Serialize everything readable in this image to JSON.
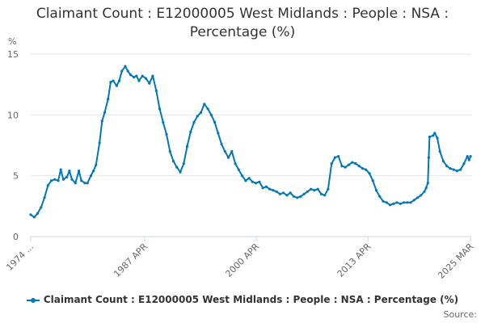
{
  "chart_data": {
    "type": "line",
    "title": "Claimant Count : E12000005 West Midlands : People : NSA : Percentage (%)",
    "title_lines": [
      "Claimant Count : E12000005 West Midlands : People : NSA :",
      "Percentage (%)"
    ],
    "ylabel": "%",
    "xlabel": "",
    "ylim": [
      0,
      15
    ],
    "yticks": [
      0,
      5,
      10,
      15
    ],
    "x_range": [
      1974.0,
      2025.25
    ],
    "x_tick_labels": [
      {
        "value": 1974.0,
        "label": "1974 ..."
      },
      {
        "value": 1987.25,
        "label": "1987 APR"
      },
      {
        "value": 2000.25,
        "label": "2000 APR"
      },
      {
        "value": 2013.25,
        "label": "2013 APR"
      },
      {
        "value": 2025.17,
        "label": "2025 MAR"
      }
    ],
    "grid": "horizontal",
    "legend_position": "bottom",
    "series": [
      {
        "name": "Claimant Count : E12000005 West Midlands : People : NSA : Percentage (%)",
        "color": "#0077b6",
        "points": [
          [
            1974.0,
            1.8
          ],
          [
            1974.4,
            1.6
          ],
          [
            1974.8,
            1.9
          ],
          [
            1975.2,
            2.4
          ],
          [
            1975.6,
            3.2
          ],
          [
            1976.0,
            4.2
          ],
          [
            1976.4,
            4.6
          ],
          [
            1976.8,
            4.7
          ],
          [
            1977.2,
            4.6
          ],
          [
            1977.5,
            5.5
          ],
          [
            1977.8,
            4.7
          ],
          [
            1978.2,
            4.9
          ],
          [
            1978.5,
            5.4
          ],
          [
            1978.8,
            4.7
          ],
          [
            1979.2,
            4.4
          ],
          [
            1979.6,
            5.4
          ],
          [
            1979.9,
            4.6
          ],
          [
            1980.3,
            4.4
          ],
          [
            1980.6,
            4.4
          ],
          [
            1981.0,
            5.0
          ],
          [
            1981.3,
            5.4
          ],
          [
            1981.6,
            5.9
          ],
          [
            1982.0,
            7.7
          ],
          [
            1982.3,
            9.5
          ],
          [
            1982.6,
            10.2
          ],
          [
            1983.0,
            11.3
          ],
          [
            1983.3,
            12.7
          ],
          [
            1983.6,
            12.8
          ],
          [
            1984.0,
            12.4
          ],
          [
            1984.3,
            12.8
          ],
          [
            1984.6,
            13.6
          ],
          [
            1985.0,
            14.0
          ],
          [
            1985.3,
            13.6
          ],
          [
            1985.6,
            13.3
          ],
          [
            1986.0,
            13.1
          ],
          [
            1986.3,
            13.2
          ],
          [
            1986.6,
            12.8
          ],
          [
            1987.0,
            13.2
          ],
          [
            1987.4,
            13.0
          ],
          [
            1987.8,
            12.6
          ],
          [
            1988.2,
            13.2
          ],
          [
            1988.6,
            12.0
          ],
          [
            1989.0,
            10.5
          ],
          [
            1989.4,
            9.4
          ],
          [
            1989.8,
            8.4
          ],
          [
            1990.2,
            7.0
          ],
          [
            1990.6,
            6.2
          ],
          [
            1991.0,
            5.7
          ],
          [
            1991.4,
            5.3
          ],
          [
            1991.8,
            6.0
          ],
          [
            1992.2,
            7.4
          ],
          [
            1992.6,
            8.6
          ],
          [
            1993.0,
            9.4
          ],
          [
            1993.4,
            9.9
          ],
          [
            1993.8,
            10.2
          ],
          [
            1994.2,
            10.9
          ],
          [
            1994.6,
            10.5
          ],
          [
            1995.0,
            10.0
          ],
          [
            1995.4,
            9.4
          ],
          [
            1995.8,
            8.5
          ],
          [
            1996.2,
            7.6
          ],
          [
            1996.6,
            7.0
          ],
          [
            1997.0,
            6.5
          ],
          [
            1997.4,
            7.0
          ],
          [
            1997.8,
            6.0
          ],
          [
            1998.2,
            5.5
          ],
          [
            1998.6,
            5.0
          ],
          [
            1999.0,
            4.6
          ],
          [
            1999.4,
            4.8
          ],
          [
            1999.8,
            4.5
          ],
          [
            2000.2,
            4.4
          ],
          [
            2000.6,
            4.5
          ],
          [
            2001.0,
            4.0
          ],
          [
            2001.4,
            4.1
          ],
          [
            2001.8,
            3.9
          ],
          [
            2002.2,
            3.8
          ],
          [
            2002.6,
            3.7
          ],
          [
            2003.0,
            3.5
          ],
          [
            2003.4,
            3.6
          ],
          [
            2003.8,
            3.4
          ],
          [
            2004.2,
            3.6
          ],
          [
            2004.6,
            3.3
          ],
          [
            2005.0,
            3.2
          ],
          [
            2005.4,
            3.3
          ],
          [
            2005.8,
            3.5
          ],
          [
            2006.2,
            3.7
          ],
          [
            2006.6,
            3.9
          ],
          [
            2007.0,
            3.8
          ],
          [
            2007.4,
            3.9
          ],
          [
            2007.8,
            3.5
          ],
          [
            2008.2,
            3.4
          ],
          [
            2008.6,
            3.9
          ],
          [
            2009.0,
            6.0
          ],
          [
            2009.4,
            6.5
          ],
          [
            2009.8,
            6.6
          ],
          [
            2010.2,
            5.8
          ],
          [
            2010.6,
            5.7
          ],
          [
            2011.0,
            5.9
          ],
          [
            2011.4,
            6.1
          ],
          [
            2011.8,
            6.0
          ],
          [
            2012.2,
            5.8
          ],
          [
            2012.6,
            5.6
          ],
          [
            2013.0,
            5.5
          ],
          [
            2013.4,
            5.2
          ],
          [
            2013.8,
            4.6
          ],
          [
            2014.2,
            3.8
          ],
          [
            2014.6,
            3.3
          ],
          [
            2015.0,
            2.9
          ],
          [
            2015.4,
            2.8
          ],
          [
            2015.8,
            2.6
          ],
          [
            2016.2,
            2.7
          ],
          [
            2016.6,
            2.8
          ],
          [
            2017.0,
            2.7
          ],
          [
            2017.4,
            2.8
          ],
          [
            2017.8,
            2.8
          ],
          [
            2018.2,
            2.8
          ],
          [
            2018.6,
            3.0
          ],
          [
            2019.0,
            3.2
          ],
          [
            2019.4,
            3.4
          ],
          [
            2019.8,
            3.7
          ],
          [
            2020.0,
            4.0
          ],
          [
            2020.2,
            4.4
          ],
          [
            2020.3,
            6.5
          ],
          [
            2020.4,
            8.2
          ],
          [
            2020.8,
            8.3
          ],
          [
            2021.0,
            8.5
          ],
          [
            2021.3,
            8.1
          ],
          [
            2021.6,
            7.0
          ],
          [
            2022.0,
            6.2
          ],
          [
            2022.4,
            5.8
          ],
          [
            2022.8,
            5.6
          ],
          [
            2023.2,
            5.5
          ],
          [
            2023.6,
            5.4
          ],
          [
            2024.0,
            5.5
          ],
          [
            2024.4,
            6.0
          ],
          [
            2024.8,
            6.6
          ],
          [
            2025.0,
            6.3
          ],
          [
            2025.17,
            6.6
          ]
        ]
      }
    ]
  },
  "legend": {
    "label": "Claimant Count : E12000005 West Midlands : People : NSA : Percentage (%)"
  },
  "credits": {
    "label": "Source:"
  }
}
